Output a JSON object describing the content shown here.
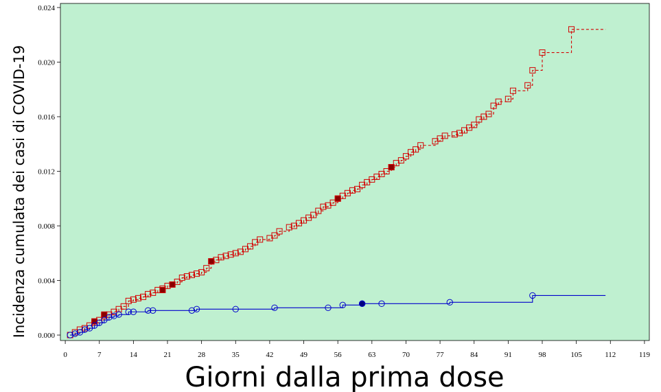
{
  "chart_data": {
    "type": "line",
    "xlabel": "Giorni dalla prima dose",
    "ylabel": "Incidenza cumulata dei casi di COVID-19",
    "xlim": [
      -1,
      120
    ],
    "ylim": [
      -0.0004,
      0.0243
    ],
    "xticks": [
      0,
      7,
      14,
      21,
      28,
      35,
      42,
      49,
      56,
      63,
      70,
      77,
      84,
      91,
      98,
      105,
      112,
      119
    ],
    "xtick_labels": [
      "0",
      "7",
      "14",
      "21",
      "28",
      "35",
      "42",
      "49",
      "56",
      "63",
      "70",
      "77",
      "84",
      "91",
      "98",
      "105",
      "112",
      "119"
    ],
    "yticks": [
      0,
      0.004,
      0.008,
      0.012,
      0.016,
      0.02,
      0.024
    ],
    "ytick_labels": [
      "0.000",
      "0.004",
      "0.008",
      "0.012",
      "0.016",
      "0.020",
      "0.024"
    ],
    "background": "#bff0d0",
    "series": [
      {
        "color": "#d40000",
        "line_style": "dashed",
        "marker": "square",
        "step": true,
        "end_x": 111,
        "points": [
          [
            1,
            0.0
          ],
          [
            2,
            0.0002
          ],
          [
            3,
            0.0004
          ],
          [
            4,
            0.0005
          ],
          [
            5,
            0.0007
          ],
          [
            6,
            0.0009
          ],
          [
            7,
            0.0011
          ],
          [
            8,
            0.0014
          ],
          [
            9,
            0.0015
          ],
          [
            10,
            0.0017
          ],
          [
            11,
            0.0019
          ],
          [
            12,
            0.0021
          ],
          [
            13,
            0.0025
          ],
          [
            14,
            0.0026
          ],
          [
            15,
            0.0027
          ],
          [
            16,
            0.0028
          ],
          [
            17,
            0.003
          ],
          [
            18,
            0.0031
          ],
          [
            19,
            0.0033
          ],
          [
            20,
            0.0034
          ],
          [
            21,
            0.0036
          ],
          [
            22,
            0.0037
          ],
          [
            23,
            0.0039
          ],
          [
            24,
            0.0042
          ],
          [
            25,
            0.0043
          ],
          [
            26,
            0.0044
          ],
          [
            27,
            0.0045
          ],
          [
            28,
            0.0046
          ],
          [
            29,
            0.0049
          ],
          [
            30,
            0.0054
          ],
          [
            31,
            0.0055
          ],
          [
            32,
            0.0057
          ],
          [
            33,
            0.0058
          ],
          [
            34,
            0.0059
          ],
          [
            35,
            0.006
          ],
          [
            36,
            0.0061
          ],
          [
            37,
            0.0063
          ],
          [
            38,
            0.0065
          ],
          [
            39,
            0.0068
          ],
          [
            40,
            0.007
          ],
          [
            42,
            0.0071
          ],
          [
            43,
            0.0073
          ],
          [
            44,
            0.0076
          ],
          [
            46,
            0.0079
          ],
          [
            47,
            0.008
          ],
          [
            48,
            0.0082
          ],
          [
            49,
            0.0084
          ],
          [
            50,
            0.0086
          ],
          [
            51,
            0.0088
          ],
          [
            52,
            0.0091
          ],
          [
            53,
            0.0094
          ],
          [
            54,
            0.0095
          ],
          [
            55,
            0.0097
          ],
          [
            56,
            0.01
          ],
          [
            57,
            0.0102
          ],
          [
            58,
            0.0104
          ],
          [
            59,
            0.0106
          ],
          [
            60,
            0.0107
          ],
          [
            61,
            0.011
          ],
          [
            62,
            0.0112
          ],
          [
            63,
            0.0114
          ],
          [
            64,
            0.0116
          ],
          [
            65,
            0.0118
          ],
          [
            66,
            0.012
          ],
          [
            67,
            0.0123
          ],
          [
            68,
            0.0126
          ],
          [
            69,
            0.0128
          ],
          [
            70,
            0.0131
          ],
          [
            71,
            0.0134
          ],
          [
            72,
            0.0136
          ],
          [
            73,
            0.0139
          ],
          [
            76,
            0.0142
          ],
          [
            77,
            0.0144
          ],
          [
            78,
            0.0146
          ],
          [
            80,
            0.0147
          ],
          [
            81,
            0.0148
          ],
          [
            82,
            0.015
          ],
          [
            83,
            0.0152
          ],
          [
            84,
            0.0154
          ],
          [
            85,
            0.0158
          ],
          [
            86,
            0.016
          ],
          [
            87,
            0.0162
          ],
          [
            88,
            0.0168
          ],
          [
            89,
            0.0171
          ],
          [
            91,
            0.0173
          ],
          [
            92,
            0.0179
          ],
          [
            95,
            0.0183
          ],
          [
            96,
            0.0194
          ],
          [
            98,
            0.0207
          ],
          [
            104,
            0.0224
          ]
        ],
        "filled_points": [
          [
            6,
            0.001
          ],
          [
            8,
            0.0015
          ],
          [
            20,
            0.0033
          ],
          [
            22,
            0.0037
          ],
          [
            30,
            0.0054
          ],
          [
            56,
            0.01
          ],
          [
            67,
            0.0123
          ]
        ]
      },
      {
        "color": "#0000cc",
        "line_style": "solid",
        "marker": "circle",
        "step": true,
        "end_x": 111,
        "points": [
          [
            1,
            0.0
          ],
          [
            2,
            0.0001
          ],
          [
            3,
            0.0002
          ],
          [
            4,
            0.0004
          ],
          [
            5,
            0.0005
          ],
          [
            6,
            0.0007
          ],
          [
            7,
            0.0009
          ],
          [
            8,
            0.0011
          ],
          [
            9,
            0.0013
          ],
          [
            10,
            0.0014
          ],
          [
            11,
            0.0015
          ],
          [
            13,
            0.0017
          ],
          [
            14,
            0.0017
          ],
          [
            17,
            0.0018
          ],
          [
            18,
            0.0018
          ],
          [
            26,
            0.0018
          ],
          [
            27,
            0.0019
          ],
          [
            35,
            0.0019
          ],
          [
            43,
            0.002
          ],
          [
            54,
            0.002
          ],
          [
            57,
            0.0022
          ],
          [
            61,
            0.0023
          ],
          [
            65,
            0.0023
          ],
          [
            79,
            0.0024
          ],
          [
            96,
            0.0029
          ]
        ],
        "filled_points": [
          [
            61,
            0.0023
          ]
        ]
      }
    ]
  }
}
